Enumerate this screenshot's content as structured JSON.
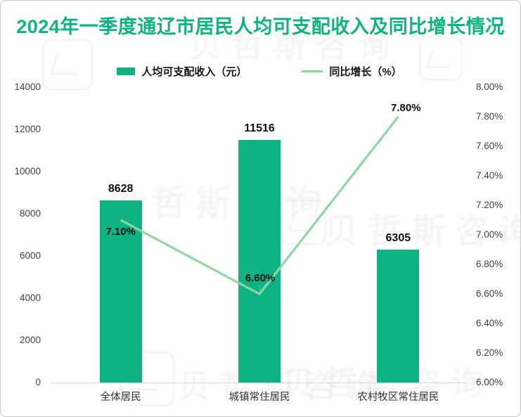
{
  "title": "2024年一季度通辽市居民人均可支配收入及同比增长情况",
  "colors": {
    "accent_green": "#0FB383",
    "line_green": "#8FD7A0",
    "title_green": "#0FB383",
    "axis_text": "#3F3F3F",
    "label_text": "#111111",
    "baseline_gray": "#D8D8D8",
    "border_gray": "#C8C8C8"
  },
  "legend": {
    "bar_label": "人均可支配收入（元）",
    "line_label": "同比增长（%）"
  },
  "watermark_text": "贝哲斯咨询",
  "chart_data": {
    "type": "bar+line",
    "title": "2024年一季度通辽市居民人均可支配收入及同比增长情况",
    "categories": [
      "全体居民",
      "城镇常住居民",
      "农村牧区常住居民"
    ],
    "series": [
      {
        "name": "人均可支配收入（元）",
        "type": "bar",
        "axis": "left",
        "values": [
          8628,
          11516,
          6305
        ],
        "labels": [
          "8628",
          "11516",
          "6305"
        ]
      },
      {
        "name": "同比增长（%）",
        "type": "line",
        "axis": "right",
        "values": [
          7.1,
          6.6,
          7.8
        ],
        "labels": [
          "7.10%",
          "6.60%",
          "7.80%"
        ]
      }
    ],
    "left_axis": {
      "min": 0,
      "max": 14000,
      "step": 2000,
      "ticks": [
        "0",
        "2000",
        "4000",
        "6000",
        "8000",
        "10000",
        "12000",
        "14000"
      ]
    },
    "right_axis": {
      "min": 6.0,
      "max": 8.0,
      "step": 0.2,
      "ticks": [
        "6.00%",
        "6.20%",
        "6.40%",
        "6.60%",
        "6.80%",
        "7.00%",
        "7.20%",
        "7.40%",
        "7.60%",
        "7.80%",
        "8.00%"
      ]
    },
    "grid": false,
    "legend_position": "top"
  }
}
